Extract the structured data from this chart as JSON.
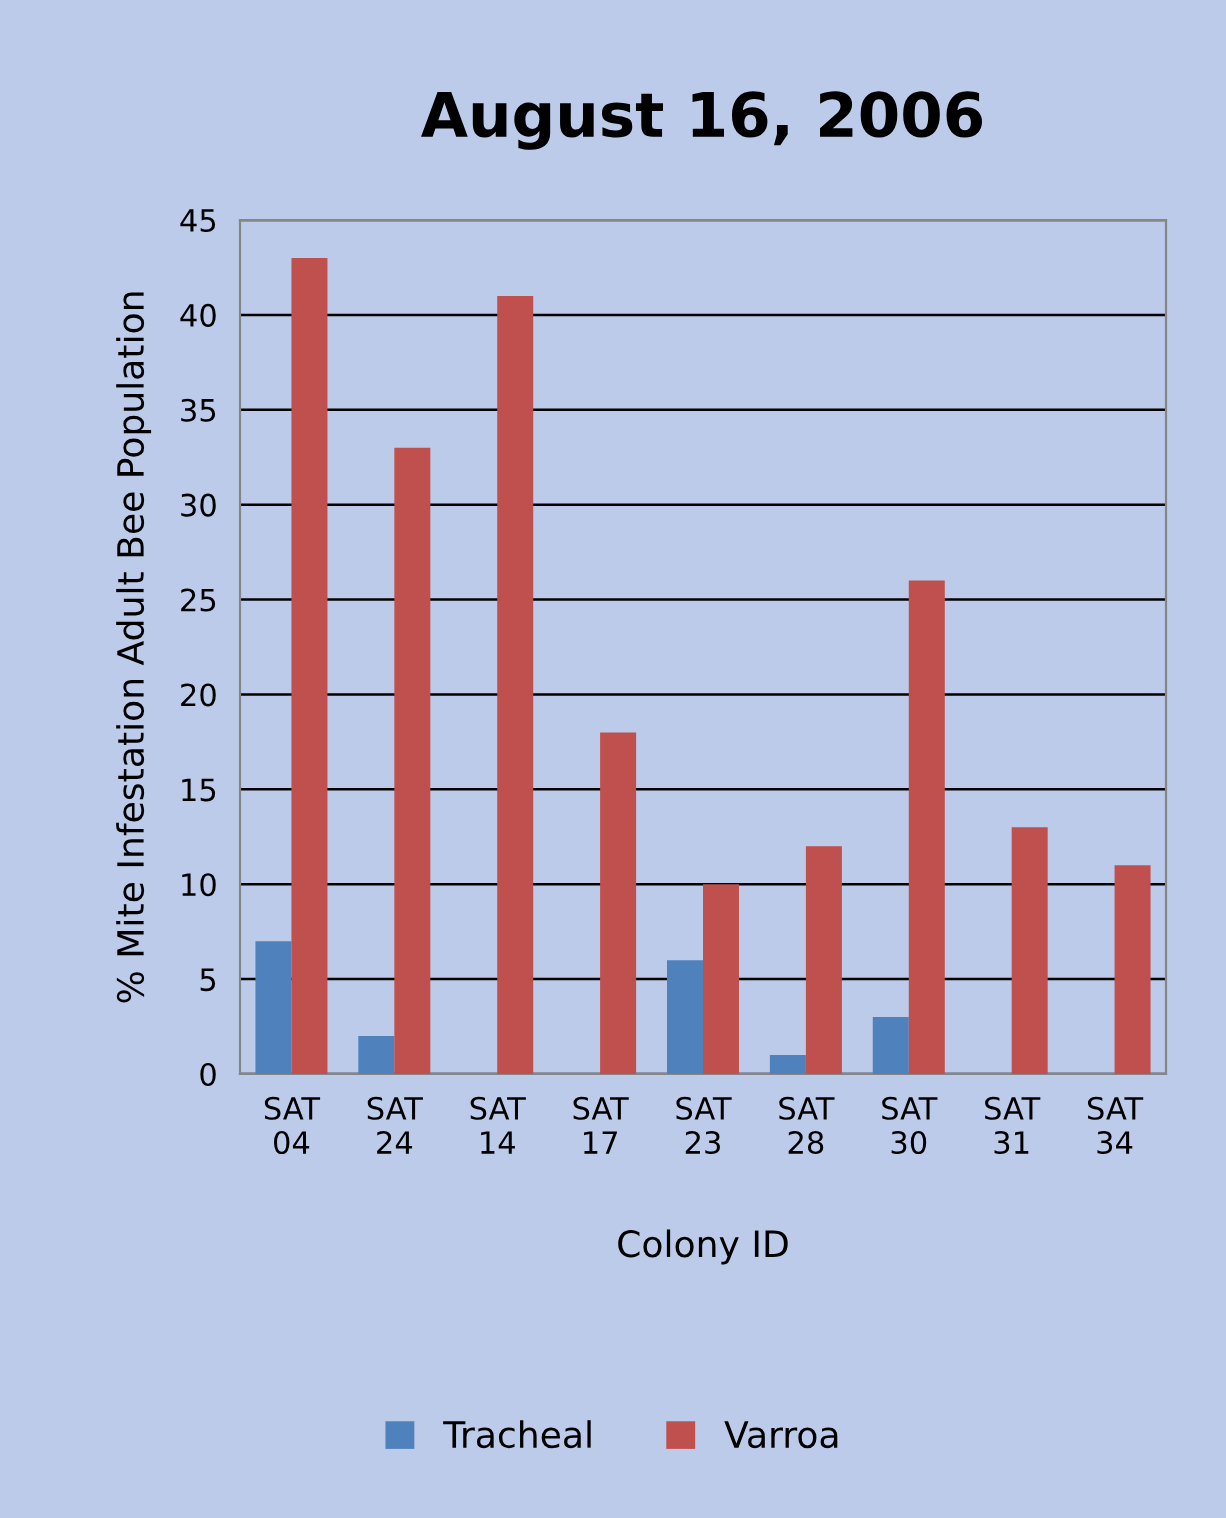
{
  "chart_data": {
    "type": "bar",
    "title": "August 16, 2006",
    "xlabel": "Colony ID",
    "ylabel": "% Mite Infestation Adult Bee Population",
    "categories": [
      "SAT\n04",
      "SAT\n24",
      "SAT\n14",
      "SAT\n17",
      "SAT\n23",
      "SAT\n28",
      "SAT\n30",
      "SAT\n31",
      "SAT\n34"
    ],
    "series": [
      {
        "name": "Tracheal",
        "color": "#4f81bd",
        "values": [
          7,
          2,
          0,
          0,
          6,
          1,
          3,
          0,
          0
        ]
      },
      {
        "name": "Varroa",
        "color": "#c0504d",
        "values": [
          43,
          33,
          41,
          18,
          10,
          12,
          26,
          13,
          11
        ]
      }
    ],
    "ylim": [
      0,
      45
    ],
    "yticks": [
      0,
      5,
      10,
      15,
      20,
      25,
      30,
      35,
      40,
      45
    ],
    "grid": "y",
    "legend": "bottom"
  }
}
